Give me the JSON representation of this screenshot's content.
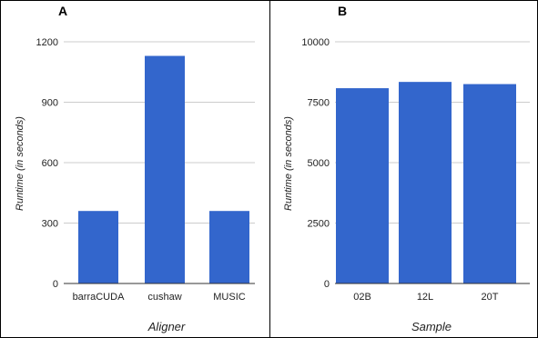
{
  "chart_data": [
    {
      "panel": "A",
      "type": "bar",
      "categories": [
        "barraCUDA",
        "cushaw",
        "MUSIC"
      ],
      "values": [
        360,
        1130,
        360
      ],
      "xlabel": "Aligner",
      "ylabel": "Runtime (in seconds)",
      "ylim": [
        0,
        1200
      ],
      "yticks": [
        0,
        300,
        600,
        900,
        1200
      ],
      "grid": true,
      "bar_color": "#3366cc"
    },
    {
      "panel": "B",
      "type": "bar",
      "categories": [
        "02B",
        "12L",
        "20T"
      ],
      "values": [
        8080,
        8340,
        8250
      ],
      "xlabel": "Sample",
      "ylabel": "Runtime (in seconds)",
      "ylim": [
        0,
        10000
      ],
      "yticks": [
        0,
        2500,
        5000,
        7500,
        10000
      ],
      "grid": true,
      "bar_color": "#3366cc"
    }
  ]
}
